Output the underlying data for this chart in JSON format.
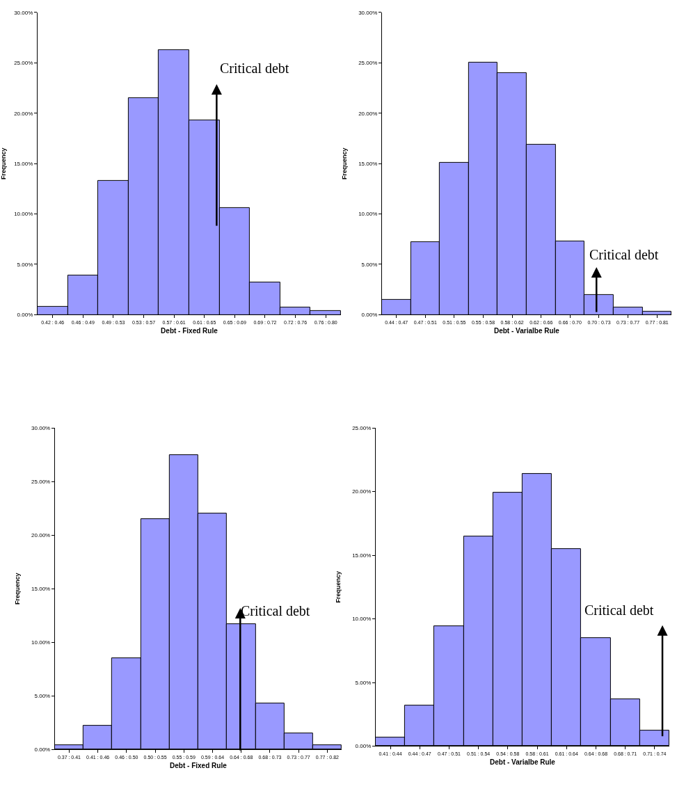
{
  "chart_data": [
    {
      "type": "bar",
      "categories": [
        "0.42 : 0.46",
        "0.46 : 0.49",
        "0.49 : 0.53",
        "0.53 : 0.57",
        "0.57 : 0.61",
        "0.61 : 0.65",
        "0.65 : 0.69",
        "0.69 : 0.72",
        "0.72 : 0.76",
        "0.76 : 0.80"
      ],
      "values": [
        0.8,
        3.9,
        13.3,
        21.5,
        26.3,
        19.3,
        10.6,
        3.2,
        0.7,
        0.4
      ],
      "color": "#9999ff",
      "xlabel": "Debt - Fixed Rule",
      "ylabel": "Frequency",
      "ylim": [
        0,
        30
      ],
      "yticks": [
        {
          "value": 0,
          "label": "0.00%"
        },
        {
          "value": 5,
          "label": "5.00%"
        },
        {
          "value": 10,
          "label": "10.00%"
        },
        {
          "value": 15,
          "label": "15.00%"
        },
        {
          "value": 20,
          "label": "20.00%"
        },
        {
          "value": 25,
          "label": "25.00%"
        },
        {
          "value": 30,
          "label": "30.00%"
        }
      ],
      "annotations": [
        "Critical debt"
      ]
    },
    {
      "type": "bar",
      "categories": [
        "0.44 : 0.47",
        "0.47 : 0.51",
        "0.51 : 0.55",
        "0.55 : 0.58",
        "0.58 : 0.62",
        "0.62 : 0.66",
        "0.66 : 0.70",
        "0.70 : 0.73",
        "0.73 : 0.77",
        "0.77 : 0.81"
      ],
      "values": [
        1.5,
        7.2,
        15.1,
        25.0,
        24.0,
        16.9,
        7.3,
        2.0,
        0.7,
        0.3
      ],
      "color": "#9999ff",
      "xlabel": "Debt - Varialbe Rule",
      "ylabel": "Frequency",
      "ylim": [
        0,
        30
      ],
      "yticks": [
        {
          "value": 0,
          "label": "0.00%"
        },
        {
          "value": 5,
          "label": "5.00%"
        },
        {
          "value": 10,
          "label": "10.00%"
        },
        {
          "value": 15,
          "label": "15.00%"
        },
        {
          "value": 20,
          "label": "20.00%"
        },
        {
          "value": 25,
          "label": "25.00%"
        },
        {
          "value": 30,
          "label": "30.00%"
        }
      ],
      "annotations": [
        "Critical debt"
      ]
    },
    {
      "type": "bar",
      "categories": [
        "0.37 : 0.41",
        "0.41 : 0.46",
        "0.46 : 0.50",
        "0.50 : 0.55",
        "0.55 : 0.59",
        "0.59 : 0.64",
        "0.64 : 0.68",
        "0.68 : 0.73",
        "0.73 : 0.77",
        "0.77 : 0.82"
      ],
      "values": [
        0.4,
        2.2,
        8.5,
        21.5,
        27.5,
        22.0,
        11.7,
        4.3,
        1.5,
        0.4
      ],
      "color": "#9999ff",
      "xlabel": "Debt - Fixed Rule",
      "ylabel": "Frequency",
      "ylim": [
        0,
        30
      ],
      "yticks": [
        {
          "value": 0,
          "label": "0.00%"
        },
        {
          "value": 5,
          "label": "5.00%"
        },
        {
          "value": 10,
          "label": "10.00%"
        },
        {
          "value": 15,
          "label": "15.00%"
        },
        {
          "value": 20,
          "label": "20.00%"
        },
        {
          "value": 25,
          "label": "25.00%"
        },
        {
          "value": 30,
          "label": "30.00%"
        }
      ],
      "annotations": [
        "Critical debt"
      ]
    },
    {
      "type": "bar",
      "categories": [
        "0.41 : 0.44",
        "0.44 : 0.47",
        "0.47 : 0.51",
        "0.51 : 0.54",
        "0.54 : 0.58",
        "0.58 : 0.61",
        "0.61 : 0.64",
        "0.64 : 0.68",
        "0.68 : 0.71",
        "0.71 : 0.74"
      ],
      "values": [
        0.7,
        3.2,
        9.4,
        16.5,
        19.9,
        21.4,
        15.5,
        8.5,
        3.7,
        1.2
      ],
      "color": "#9999ff",
      "xlabel": "Debt - Varialbe Rule",
      "ylabel": "Frequency",
      "ylim": [
        0,
        25
      ],
      "yticks": [
        {
          "value": 0,
          "label": "0.00%"
        },
        {
          "value": 5,
          "label": "5.00%"
        },
        {
          "value": 10,
          "label": "10.00%"
        },
        {
          "value": 15,
          "label": "15.00%"
        },
        {
          "value": 20,
          "label": "20.00%"
        },
        {
          "value": 25,
          "label": "25.00%"
        }
      ],
      "annotations": [
        "Critical debt"
      ]
    }
  ]
}
